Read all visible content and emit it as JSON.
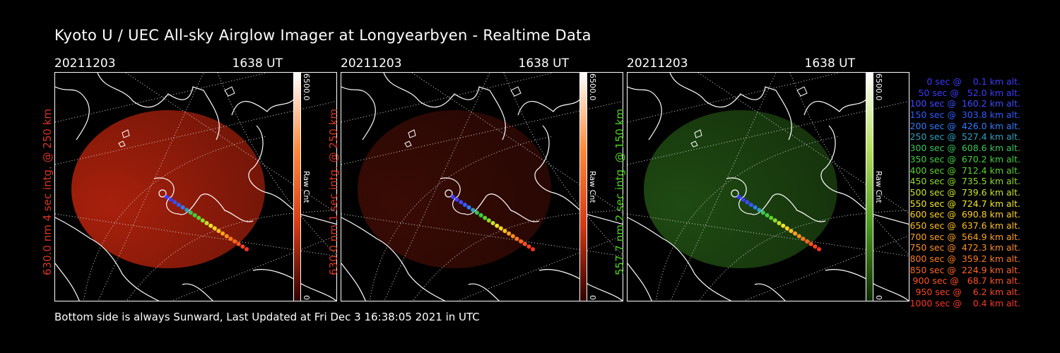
{
  "title": "Kyoto U / UEC All-sky Airglow Imager at Longyearbyen - Realtime Data",
  "footer": "Bottom side is always Sunward, Last Updated at Fri Dec  3 16:38:05 2021 in UTC",
  "panels": [
    {
      "date": "20211203",
      "time": "1638 UT",
      "side_label": "630.0 nm 4 sec intg. @ 250 km",
      "label_color": "#d8361c",
      "cbar_max": "6500.0",
      "cbar_min": "0",
      "cbar_unit": "Raw Cnt",
      "glow_color": "#a8200c",
      "bar_gradient": [
        "#ffffff",
        "#ff8a3c",
        "#d43a14",
        "#300000"
      ]
    },
    {
      "date": "20211203",
      "time": "1638 UT",
      "side_label": "630.0 nm 1 sec intg. @ 250 km",
      "label_color": "#d8361c",
      "cbar_max": "6500.0",
      "cbar_min": "0",
      "cbar_unit": "Raw Cnt",
      "glow_color": "#3a0b05",
      "bar_gradient": [
        "#ffffff",
        "#ff8a3c",
        "#d43a14",
        "#300000"
      ]
    },
    {
      "date": "20211203",
      "time": "1638 UT",
      "side_label": "557.7 nm 2 sec intg. @ 150 km",
      "label_color": "#4fd321",
      "cbar_max": "6500.0",
      "cbar_min": "0",
      "cbar_unit": "Raw Cnt",
      "glow_color": "#1f4a12",
      "bar_gradient": [
        "#ffffff",
        "#b6e05a",
        "#4b9a1c",
        "#0c2a00"
      ]
    }
  ],
  "legend": [
    {
      "text": "   0 sec @    0.1 km alt.",
      "color": "#3b3bff"
    },
    {
      "text": "  50 sec @   52.0 km alt.",
      "color": "#3b3bff"
    },
    {
      "text": " 100 sec @  160.2 km alt.",
      "color": "#3b4cff"
    },
    {
      "text": " 150 sec @  303.8 km alt.",
      "color": "#2f5cff"
    },
    {
      "text": " 200 sec @  426.0 km alt.",
      "color": "#2f7bff"
    },
    {
      "text": " 250 sec @  527.4 km alt.",
      "color": "#2fa0c0"
    },
    {
      "text": " 300 sec @  608.6 km alt.",
      "color": "#38c75a"
    },
    {
      "text": " 350 sec @  670.2 km alt.",
      "color": "#3ed23a"
    },
    {
      "text": " 400 sec @  712.4 km alt.",
      "color": "#5ad32c"
    },
    {
      "text": " 450 sec @  735.5 km alt.",
      "color": "#8ddc2a"
    },
    {
      "text": " 500 sec @  739.6 km alt.",
      "color": "#c3e52a"
    },
    {
      "text": " 550 sec @  724.7 km alt.",
      "color": "#f0e62a"
    },
    {
      "text": " 600 sec @  690.8 km alt.",
      "color": "#ffd21f"
    },
    {
      "text": " 650 sec @  637.6 km alt.",
      "color": "#ffbe1f"
    },
    {
      "text": " 700 sec @  564.9 km alt.",
      "color": "#ffa21f"
    },
    {
      "text": " 750 sec @  472.3 km alt.",
      "color": "#ff8e1f"
    },
    {
      "text": " 800 sec @  359.2 km alt.",
      "color": "#ff7a1f"
    },
    {
      "text": " 850 sec @  224.9 km alt.",
      "color": "#ff661f"
    },
    {
      "text": " 900 sec @   68.7 km alt.",
      "color": "#ff521f"
    },
    {
      "text": " 950 sec @    6.2 km alt.",
      "color": "#ff421f"
    },
    {
      "text": "1000 sec @    0.4 km alt.",
      "color": "#ff321f"
    }
  ]
}
